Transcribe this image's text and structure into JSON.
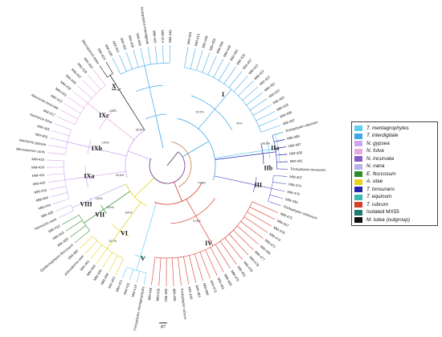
{
  "leaf_labels": [
    "MM-454",
    "MM-413",
    "MM-448",
    "MM-453",
    "MM-456",
    "MM-449",
    "MM-450",
    "MM-434",
    "MM-457",
    "MM-415",
    "MM-422",
    "MM-423",
    "MM-452",
    "MM-437",
    "MM-460",
    "MM-418",
    "MM-436",
    "MM-497",
    "Trichophyton equinum",
    "MM-488",
    "MM-487",
    "MM-490",
    "MM-491",
    "Trichophyton tonsurans",
    "MM-407",
    "MM-474",
    "MM-470",
    "MM-430",
    "Trichophyton violaceum",
    "MM-475",
    "MM-427",
    "MM-476",
    "MM-473",
    "MM-471",
    "MM-406",
    "MM-477",
    "MM-479",
    "MM-478",
    "MM-451",
    "MM-475",
    "MM-469",
    "MM-482",
    "MM-473",
    "MM-480",
    "MM-481",
    "MM-449",
    "Trichophyton rubrum",
    "MM-485",
    "MM-486",
    "MM-428",
    "MM-494",
    "Trichophyton mentagrophytes",
    "MM-419",
    "MM-431",
    "MM-421",
    "MM-455",
    "MM-458",
    "MM-445",
    "MM-459",
    "MM-461",
    "Arthroderma otae",
    "MM-482",
    "Epidermophyton floccosum",
    "MM-426",
    "MM-443",
    "MM-410",
    "Nannizzia nana",
    "MM-435",
    "MM-444",
    "MM-464",
    "MM-416",
    "MM-420",
    "MM-411",
    "MM-424",
    "MM-422",
    "Microsporum canis",
    "Nannizzia gypsea",
    "MM-403",
    "MM-405",
    "Nannizzia fulva",
    "MM-417",
    "Nannizzia incurvata",
    "MM-412",
    "MM-433",
    "MM-432",
    "MM-448",
    "MM-447",
    "MM-429",
    "MM-450",
    "Microsporum lutea",
    "MM-434",
    "MM-430",
    "MM-441",
    "MM-465",
    "MM-409",
    "MM-408",
    "Trichophyton interdigitale",
    "MM-425",
    "MM-414",
    "MM-446"
  ],
  "clade_labels": [
    "I",
    "IIa",
    "IIb",
    "III",
    "IV",
    "V",
    "VI",
    "VII",
    "VIII",
    "IXa",
    "IXb",
    "IXc",
    "X"
  ],
  "bootstrap_values": [
    "99.5%",
    "98.8%",
    "99%",
    "100%",
    "100%",
    "100%",
    "78.7%",
    "100%",
    "100%",
    "99.8%",
    "99.6%",
    "73.8%",
    "74.8%"
  ],
  "legend": {
    "items": [
      {
        "label": "T. mentagrophytes",
        "color": "#5fd0f0"
      },
      {
        "label": "T. interdigitale",
        "color": "#3fa8e8"
      },
      {
        "label": "N. gypsea",
        "color": "#cfa4f0"
      },
      {
        "label": "N. fulva",
        "color": "#e8a8e0"
      },
      {
        "label": "N. incurvata",
        "color": "#8a5cc8"
      },
      {
        "label": "N. nana",
        "color": "#b8b0e8"
      },
      {
        "label": "E. floccosum",
        "color": "#2e8b2e"
      },
      {
        "label": "A. otae",
        "color": "#e6d21a"
      },
      {
        "label": "T. tonsurans",
        "color": "#2323b0"
      },
      {
        "label": "T. equinum",
        "color": "#38b8b0"
      },
      {
        "label": "T. rubrum",
        "color": "#d83c2c"
      },
      {
        "label": "Isolated MX55",
        "color": "#1e7b6e"
      },
      {
        "label": "M. lutea (outgroup)",
        "color": "#111111"
      }
    ]
  },
  "scale_label": "87"
}
